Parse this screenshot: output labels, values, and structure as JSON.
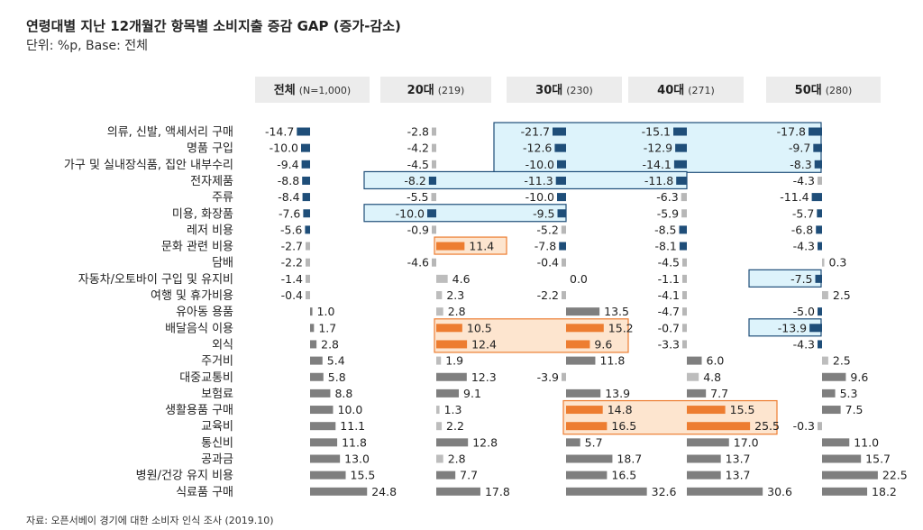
{
  "title": "연령대별 지난 12개월간 항목별 소비지출 증감 GAP (증가-감소)",
  "subtitle": "단위: %p, Base: 전체",
  "source": "자료: 오픈서베이 경기에 대한 소비자 인식 조사 (2019.10)",
  "colors": {
    "negative": "#1f4e79",
    "negative_minor": "#b7b7b7",
    "positive": "#7f7f7f",
    "positive_minor": "#bdbdbd",
    "highlight_pos": "#ed7d31",
    "box_blue_fill": "#ddf3fb",
    "box_blue_stroke": "#1f4e79",
    "box_orange_fill": "#fde5cf",
    "box_orange_stroke": "#ed7d31",
    "header_bg": "#ececec"
  },
  "chart_data": {
    "type": "bar",
    "orientation": "horizontal",
    "categories": [
      "의류, 신발, 액세서리 구매",
      "명품 구입",
      "가구 및 실내장식품, 집안 내부수리",
      "전자제품",
      "주류",
      "미용, 화장품",
      "레저 비용",
      "문화 관련 비용",
      "담배",
      "자동차/오토바이 구입 및 유지비",
      "여행 및 휴가비용",
      "유아동 용품",
      "배달음식 이용",
      "외식",
      "주거비",
      "대중교통비",
      "보험료",
      "생활용품 구매",
      "교육비",
      "통신비",
      "공과금",
      "병원/건강 유지 비용",
      "식료품 구매"
    ],
    "series": [
      {
        "name": "전체",
        "n_label": "(N=1,000)",
        "values": [
          -14.7,
          -10.0,
          -9.4,
          -8.8,
          -8.4,
          -7.6,
          -5.6,
          -2.7,
          -2.2,
          -1.4,
          -0.4,
          1.0,
          1.7,
          2.8,
          5.4,
          5.8,
          8.8,
          10.0,
          11.1,
          11.8,
          13.0,
          15.5,
          24.8
        ]
      },
      {
        "name": "20대",
        "n_label": "(219)",
        "values": [
          -2.8,
          -4.2,
          -4.5,
          -8.2,
          -5.5,
          -10.0,
          -0.9,
          11.4,
          -4.6,
          4.6,
          2.3,
          2.8,
          10.5,
          12.4,
          1.9,
          12.3,
          9.1,
          1.3,
          2.2,
          12.8,
          2.8,
          7.7,
          17.8
        ]
      },
      {
        "name": "30대",
        "n_label": "(230)",
        "values": [
          -21.7,
          -12.6,
          -10.0,
          -11.3,
          -10.0,
          -9.5,
          -5.2,
          -7.8,
          -0.4,
          0.0,
          -2.2,
          13.5,
          15.2,
          9.6,
          11.8,
          -3.9,
          13.9,
          14.8,
          16.5,
          5.7,
          18.7,
          16.5,
          32.6
        ]
      },
      {
        "name": "40대",
        "n_label": "(271)",
        "values": [
          -15.1,
          -12.9,
          -14.1,
          -11.8,
          -6.3,
          -5.9,
          -8.5,
          -8.1,
          -4.5,
          -1.1,
          -4.1,
          -4.7,
          -0.7,
          -3.3,
          6.0,
          4.8,
          7.7,
          15.5,
          25.5,
          17.0,
          13.7,
          13.7,
          30.6
        ]
      },
      {
        "name": "50대",
        "n_label": "(280)",
        "values": [
          -17.8,
          -9.7,
          -8.3,
          -4.3,
          -11.4,
          -5.7,
          -6.8,
          -4.3,
          0.3,
          -7.5,
          2.5,
          -5.0,
          -13.9,
          -4.3,
          2.5,
          9.6,
          5.3,
          7.5,
          -0.3,
          11.0,
          15.7,
          22.5,
          18.2
        ]
      }
    ],
    "highlights": [
      {
        "series": 0,
        "rows": [
          0,
          1,
          2,
          3,
          4,
          5,
          6
        ],
        "tone": "negative_strong"
      },
      {
        "series": 1,
        "rows": [
          3,
          5
        ],
        "tone": "negative_strong"
      },
      {
        "series": 2,
        "rows": [
          0,
          1,
          2,
          3,
          4,
          5,
          7
        ],
        "tone": "negative_strong"
      },
      {
        "series": 3,
        "rows": [
          0,
          1,
          2,
          3,
          6,
          7
        ],
        "tone": "negative_strong"
      },
      {
        "series": 4,
        "rows": [
          0,
          1,
          2,
          4,
          5,
          6,
          7,
          9,
          11,
          12,
          13
        ],
        "tone": "negative_strong"
      },
      {
        "series": 1,
        "rows": [
          7,
          12,
          13
        ],
        "tone": "positive_strong"
      },
      {
        "series": 2,
        "rows": [
          12,
          13,
          17,
          18
        ],
        "tone": "positive_strong"
      },
      {
        "series": 3,
        "rows": [
          17,
          18
        ],
        "tone": "positive_strong"
      }
    ],
    "boxes": [
      {
        "kind": "blue",
        "from_series": 2,
        "to_series": 4,
        "rows": [
          0,
          2
        ]
      },
      {
        "kind": "blue",
        "from_series": 1,
        "to_series": 3,
        "rows": [
          3,
          3
        ]
      },
      {
        "kind": "blue",
        "from_series": 1,
        "to_series": 2,
        "rows": [
          5,
          5
        ]
      },
      {
        "kind": "blue",
        "from_series": 4,
        "to_series": 4,
        "rows": [
          9,
          9
        ]
      },
      {
        "kind": "blue",
        "from_series": 4,
        "to_series": 4,
        "rows": [
          12,
          12
        ]
      },
      {
        "kind": "orange",
        "from_series": 1,
        "to_series": 1,
        "rows": [
          7,
          7
        ]
      },
      {
        "kind": "orange",
        "from_series": 1,
        "to_series": 2,
        "rows": [
          12,
          13
        ]
      },
      {
        "kind": "orange",
        "from_series": 2,
        "to_series": 3,
        "rows": [
          17,
          18
        ]
      }
    ]
  }
}
